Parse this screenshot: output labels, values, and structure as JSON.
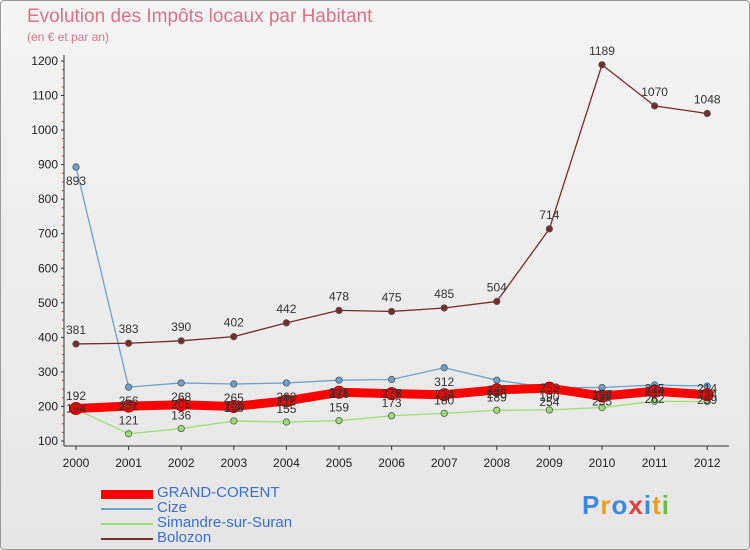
{
  "chart_data": {
    "type": "line",
    "title": "Evolution des Impôts locaux par Habitant",
    "subtitle": "(en € et par an)",
    "xlabel": "",
    "ylabel": "",
    "categories": [
      "2000",
      "2001",
      "2002",
      "2003",
      "2004",
      "2005",
      "2006",
      "2007",
      "2008",
      "2009",
      "2010",
      "2011",
      "2012"
    ],
    "yticks": [
      100,
      200,
      300,
      400,
      500,
      600,
      700,
      800,
      900,
      1000,
      1100,
      1200
    ],
    "ylim": [
      100,
      1200
    ],
    "grid": false,
    "legend": "bottom-left",
    "series": [
      {
        "name": "GRAND-CORENT",
        "color": "#ff0000",
        "values": [
          194,
          201,
          205,
          200,
          216,
          241,
          237,
          234,
          248,
          253,
          230,
          244,
          234
        ]
      },
      {
        "name": "Cize",
        "color": "#6aa3d0",
        "values": [
          893,
          256,
          268,
          265,
          268,
          276,
          278,
          312,
          276,
          254,
          255,
          262,
          259
        ]
      },
      {
        "name": "Simandre-sur-Suran",
        "color": "#99e070",
        "values": [
          192,
          121,
          136,
          158,
          155,
          159,
          173,
          180,
          189,
          190,
          197,
          215,
          214
        ]
      },
      {
        "name": "Bolozon",
        "color": "#7a2a2a",
        "values": [
          381,
          383,
          390,
          402,
          442,
          478,
          475,
          485,
          504,
          714,
          1189,
          1070,
          1048
        ]
      }
    ]
  },
  "logo": {
    "text": "Proxiti",
    "letters": [
      {
        "ch": "P",
        "color": "#3a8be0"
      },
      {
        "ch": "r",
        "color": "#e8a020"
      },
      {
        "ch": "o",
        "color": "#3a8be0"
      },
      {
        "ch": "x",
        "color": "#e04040"
      },
      {
        "ch": "i",
        "color": "#3a8be0"
      },
      {
        "ch": "t",
        "color": "#e8a020"
      },
      {
        "ch": "i",
        "color": "#6cc040"
      }
    ]
  }
}
